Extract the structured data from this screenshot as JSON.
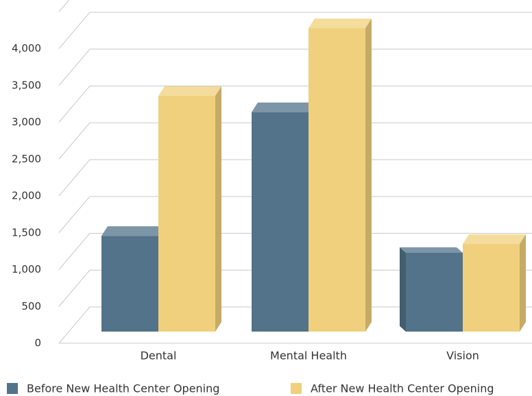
{
  "chart_data": {
    "type": "bar",
    "categories": [
      "Dental",
      "Mental Health",
      "Vision"
    ],
    "series": [
      {
        "name": "Before New Health Center Opening",
        "values": [
          1300,
          2980,
          1070
        ],
        "color": "#527389"
      },
      {
        "name": "After New Health Center Opening",
        "values": [
          3200,
          4120,
          1190
        ],
        "color": "#f0d07c"
      }
    ],
    "y_ticks": [
      "0",
      "500",
      "1,000",
      "1,500",
      "2,000",
      "2,500",
      "3,000",
      "3,500",
      "4,000"
    ],
    "ylim": [
      0,
      4300
    ],
    "grid": true,
    "legend_position": "bottom",
    "title": "",
    "xlabel": "",
    "ylabel": ""
  }
}
